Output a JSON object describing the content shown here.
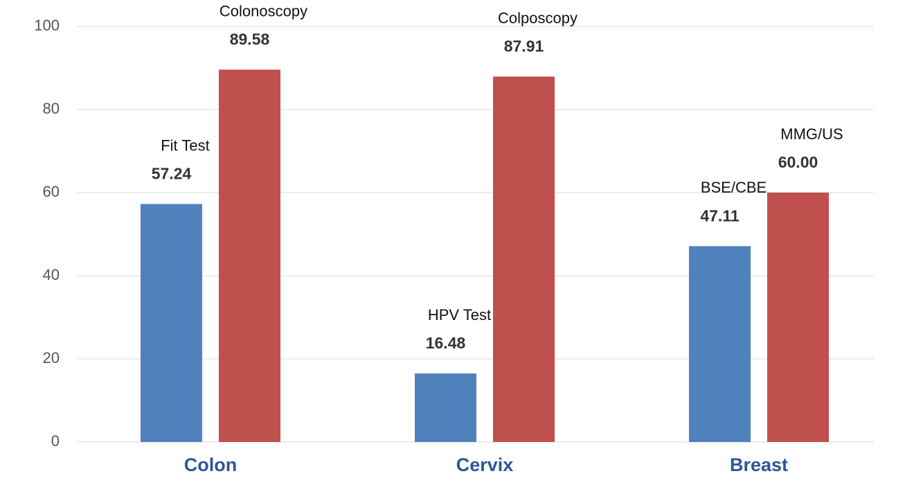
{
  "chart_data": {
    "type": "bar",
    "categories": [
      "Colon",
      "Cervix",
      "Breast"
    ],
    "series": [
      {
        "color": "#4f81bd",
        "values": [
          57.24,
          16.48,
          47.11
        ],
        "value_labels": [
          "57.24",
          "16.48",
          "47.11"
        ],
        "bar_labels": [
          "Fit Test",
          "HPV Test",
          "BSE/CBE"
        ]
      },
      {
        "color": "#c0504d",
        "values": [
          89.58,
          87.91,
          60.0
        ],
        "value_labels": [
          "89.58",
          "87.91",
          "60.00"
        ],
        "bar_labels": [
          "Colonoscopy",
          "Colposcopy",
          "MMG/US"
        ]
      }
    ],
    "ylim": [
      0,
      100
    ],
    "yticks": [
      0,
      20,
      40,
      60,
      80,
      100
    ],
    "grid": true
  }
}
